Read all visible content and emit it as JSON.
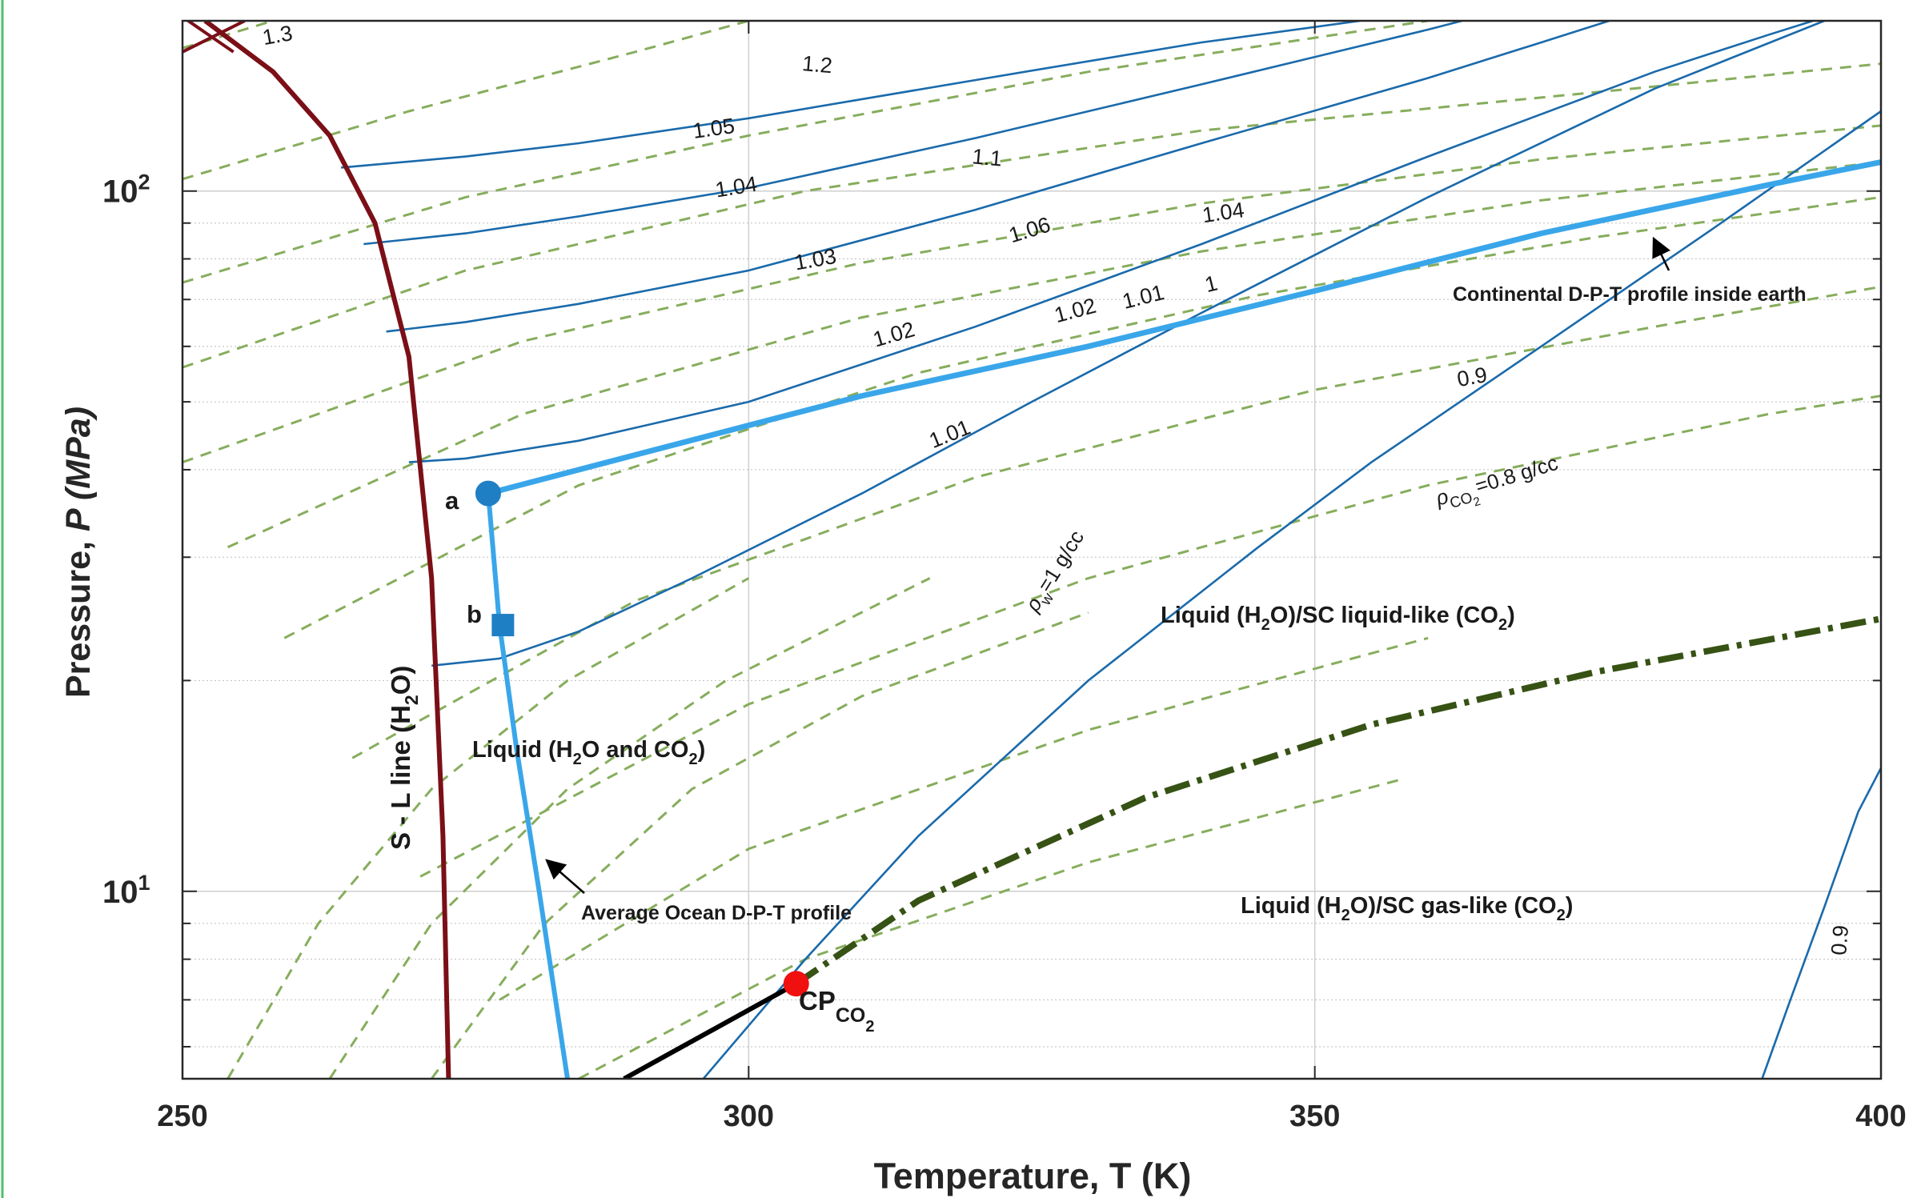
{
  "chart_data": {
    "type": "line",
    "title": "",
    "xlabel": "Temperature, T (K)",
    "ylabel_main": "Pressure, ",
    "ylabel_var": "P",
    "ylabel_unit": " (MPa)",
    "xlim": [
      250,
      400
    ],
    "ylim": [
      5.4,
      175
    ],
    "yscale": "log",
    "grid": true,
    "x_ticks": [
      {
        "value": 250,
        "label": "250"
      },
      {
        "value": 300,
        "label": "300"
      },
      {
        "value": 350,
        "label": "350"
      },
      {
        "value": 400,
        "label": "400"
      }
    ],
    "y_ticks": [
      {
        "value": 10,
        "base": "10",
        "exp": "1"
      },
      {
        "value": 100,
        "base": "10",
        "exp": "2"
      }
    ],
    "colors": {
      "water_density": "#1a6aab",
      "co2_density": "#86ad5c",
      "sl_line": "#7b0f17",
      "profile": "#3aa6ea",
      "critical_line": "#365214",
      "subcritical_line": "#000000",
      "critical_point": "#f01010",
      "grid": "#cfcfcf"
    },
    "water_contours": [
      {
        "label": "1.05",
        "points": [
          [
            264,
            108
          ],
          [
            275,
            112
          ],
          [
            285,
            117
          ],
          [
            300,
            127
          ],
          [
            320,
            144
          ],
          [
            340,
            163
          ],
          [
            354,
            175
          ]
        ]
      },
      {
        "label": "1.04",
        "points": [
          [
            266,
            84
          ],
          [
            275,
            87
          ],
          [
            285,
            92
          ],
          [
            300,
            101
          ],
          [
            320,
            119
          ],
          [
            340,
            142
          ],
          [
            360,
            170
          ],
          [
            363,
            175
          ]
        ]
      },
      {
        "label": "1.03",
        "points": [
          [
            268,
            63
          ],
          [
            275,
            65
          ],
          [
            285,
            69
          ],
          [
            300,
            77
          ],
          [
            320,
            94
          ],
          [
            340,
            117
          ],
          [
            360,
            145
          ],
          [
            370,
            163
          ],
          [
            376,
            175
          ]
        ]
      },
      {
        "label": "1.02",
        "points": [
          [
            270,
            41
          ],
          [
            275,
            41.5
          ],
          [
            285,
            44
          ],
          [
            300,
            50
          ],
          [
            320,
            64
          ],
          [
            340,
            84
          ],
          [
            360,
            112
          ],
          [
            380,
            148
          ],
          [
            390,
            167
          ],
          [
            394,
            175
          ]
        ]
      },
      {
        "label": "1.01",
        "points": [
          [
            272,
            21
          ],
          [
            278,
            21.5
          ],
          [
            285,
            23.5
          ],
          [
            295,
            28
          ],
          [
            310,
            37
          ],
          [
            325,
            50
          ],
          [
            340,
            67
          ],
          [
            360,
            98
          ],
          [
            380,
            140
          ],
          [
            395,
            175
          ]
        ]
      },
      {
        "label": "1",
        "points": [
          [
            296,
            5.4
          ],
          [
            305,
            8
          ],
          [
            315,
            12
          ],
          [
            330,
            20
          ],
          [
            345,
            31
          ],
          [
            355,
            41
          ],
          [
            370,
            60
          ],
          [
            385,
            88
          ],
          [
            400,
            130
          ]
        ]
      },
      {
        "label": "0.9",
        "points": [
          [
            389.5,
            5.4
          ],
          [
            392,
            7
          ],
          [
            395,
            9.5
          ],
          [
            398,
            13
          ],
          [
            400,
            15
          ]
        ]
      }
    ],
    "water_contour_labels": [
      {
        "text": "1.05",
        "x": 297,
        "y": 120,
        "angle": -8
      },
      {
        "text": "1.04",
        "x": 299,
        "y": 99,
        "angle": -9
      },
      {
        "text": "1.03",
        "x": 306,
        "y": 78,
        "angle": -10
      },
      {
        "text": "1.02",
        "x": 313,
        "y": 61,
        "angle": -16
      },
      {
        "text": "1.01",
        "x": 318,
        "y": 44,
        "angle": -22
      },
      {
        "text": "1.04",
        "x": 342,
        "y": 91,
        "angle": -8
      },
      {
        "text": "0.9",
        "x": 397,
        "y": 8.5,
        "angle": -85
      }
    ],
    "co2_contours": [
      {
        "label": "1.3",
        "points": [
          [
            250,
            160
          ],
          [
            258,
            175
          ]
        ]
      },
      {
        "label": "1.2",
        "points": [
          [
            250,
            104
          ],
          [
            270,
            130
          ],
          [
            290,
            158
          ],
          [
            300,
            175
          ]
        ]
      },
      {
        "label": "1.1",
        "points": [
          [
            250,
            74
          ],
          [
            275,
            98
          ],
          [
            300,
            120
          ],
          [
            330,
            148
          ],
          [
            360,
            175
          ]
        ]
      },
      {
        "label": "1.06",
        "points": [
          [
            250,
            56
          ],
          [
            275,
            77
          ],
          [
            305,
            100
          ],
          [
            340,
            122
          ],
          [
            380,
            141
          ],
          [
            400,
            152
          ]
        ]
      },
      {
        "label": "1.02",
        "points": [
          [
            250,
            41
          ],
          [
            280,
            61
          ],
          [
            310,
            79
          ],
          [
            340,
            96
          ],
          [
            370,
            111
          ],
          [
            400,
            124
          ]
        ]
      },
      {
        "label": "1.01",
        "points": [
          [
            254,
            31
          ],
          [
            280,
            48
          ],
          [
            310,
            66
          ],
          [
            340,
            82
          ],
          [
            370,
            97
          ],
          [
            400,
            110
          ]
        ]
      },
      {
        "label": "1",
        "points": [
          [
            259,
            23
          ],
          [
            285,
            38
          ],
          [
            315,
            55
          ],
          [
            345,
            71
          ],
          [
            375,
            86
          ],
          [
            400,
            98
          ]
        ]
      },
      {
        "label": "0.9",
        "points": [
          [
            265,
            15.5
          ],
          [
            290,
            26
          ],
          [
            320,
            39
          ],
          [
            350,
            52
          ],
          [
            380,
            64
          ],
          [
            400,
            73
          ]
        ]
      },
      {
        "label": "0.8",
        "points": [
          [
            271,
            10.5
          ],
          [
            300,
            18.5
          ],
          [
            330,
            28
          ],
          [
            360,
            38
          ],
          [
            390,
            48
          ],
          [
            400,
            51
          ]
        ]
      },
      {
        "label": "",
        "points": [
          [
            278,
            7
          ],
          [
            300,
            11.5
          ],
          [
            330,
            17
          ],
          [
            360,
            23
          ]
        ]
      },
      {
        "label": "",
        "points": [
          [
            285,
            5.4
          ],
          [
            305,
            8
          ],
          [
            330,
            11
          ],
          [
            358,
            14.5
          ]
        ]
      },
      {
        "label": "",
        "points": [
          [
            254,
            5.4
          ],
          [
            262,
            9
          ],
          [
            272,
            14
          ],
          [
            284,
            20
          ],
          [
            300,
            28
          ]
        ]
      },
      {
        "label": "",
        "points": [
          [
            263,
            5.4
          ],
          [
            272,
            9
          ],
          [
            284,
            14
          ],
          [
            298,
            20
          ],
          [
            316,
            28
          ]
        ]
      },
      {
        "label": "",
        "points": [
          [
            272,
            5.4
          ],
          [
            282,
            9
          ],
          [
            295,
            14
          ],
          [
            310,
            19
          ],
          [
            330,
            25
          ]
        ]
      }
    ],
    "co2_contour_labels": [
      {
        "text": "1.3",
        "x": 258.5,
        "y": 163,
        "angle": -10
      },
      {
        "text": "1.2",
        "x": 306,
        "y": 148,
        "angle": 5
      },
      {
        "text": "1.1",
        "x": 321,
        "y": 109,
        "angle": 5
      },
      {
        "text": "1.06",
        "x": 325,
        "y": 86,
        "angle": -17
      },
      {
        "text": "1.02",
        "x": 329,
        "y": 66,
        "angle": -15
      },
      {
        "text": "1.01",
        "x": 335,
        "y": 69,
        "angle": -14
      },
      {
        "text": "1",
        "x": 341,
        "y": 72,
        "angle": -14
      },
      {
        "text": "0.9",
        "x": 364,
        "y": 53,
        "angle": -10
      }
    ],
    "sl_line": [
      [
        252,
        175
      ],
      [
        258,
        148
      ],
      [
        263,
        120
      ],
      [
        267,
        90
      ],
      [
        270,
        58
      ],
      [
        272,
        28
      ],
      [
        273,
        12
      ],
      [
        273.5,
        5.4
      ]
    ],
    "ocean_profile": [
      [
        277,
        37
      ],
      [
        278,
        24
      ],
      [
        279.5,
        16
      ],
      [
        281.5,
        10
      ],
      [
        284,
        5.4
      ]
    ],
    "continental_profile": [
      [
        277,
        37
      ],
      [
        290,
        42
      ],
      [
        310,
        51
      ],
      [
        330,
        60
      ],
      [
        350,
        72
      ],
      [
        370,
        87
      ],
      [
        390,
        102
      ],
      [
        400,
        110
      ]
    ],
    "critical_line": [
      [
        304.2,
        7.38
      ],
      [
        315,
        9.7
      ],
      [
        335,
        13.6
      ],
      [
        355,
        17.3
      ],
      [
        375,
        20.6
      ],
      [
        400,
        24.5
      ]
    ],
    "subcritical_line": [
      [
        289,
        5.4
      ],
      [
        304.2,
        7.38
      ]
    ],
    "points": {
      "a": {
        "x": 277,
        "y": 37,
        "label": "a"
      },
      "b": {
        "x": 278.3,
        "y": 24,
        "label": "b"
      },
      "cp": {
        "x": 304.2,
        "y": 7.38,
        "label": "CP",
        "sub": "CO",
        "subsub": "2"
      }
    },
    "regions": {
      "liquid_main": "Liquid (H",
      "liquid_sub2": "2",
      "liquid_rest": "O and CO",
      "liquid_end": ")",
      "liquid_like_1": "Liquid (H",
      "liquid_like_2": "O)/SC liquid-like (CO",
      "gas_like_1": "Liquid (H",
      "gas_like_2": "O)/SC gas-like (CO",
      "sub2": "2",
      "close_paren": ")"
    },
    "annotations": {
      "sl_line_1": "S - L line (H",
      "sl_line_2": "O)",
      "rho_w_symbol": "ρ",
      "rho_w_sub": "w",
      "rho_w_value": "=1 g/cc",
      "rho_co2_symbol": "ρ",
      "rho_co2_sub": "CO",
      "rho_co2_value": "=0.8 g/cc",
      "continental": "Continental D-P-T profile inside earth",
      "ocean": "Average Ocean D-P-T profile"
    }
  }
}
